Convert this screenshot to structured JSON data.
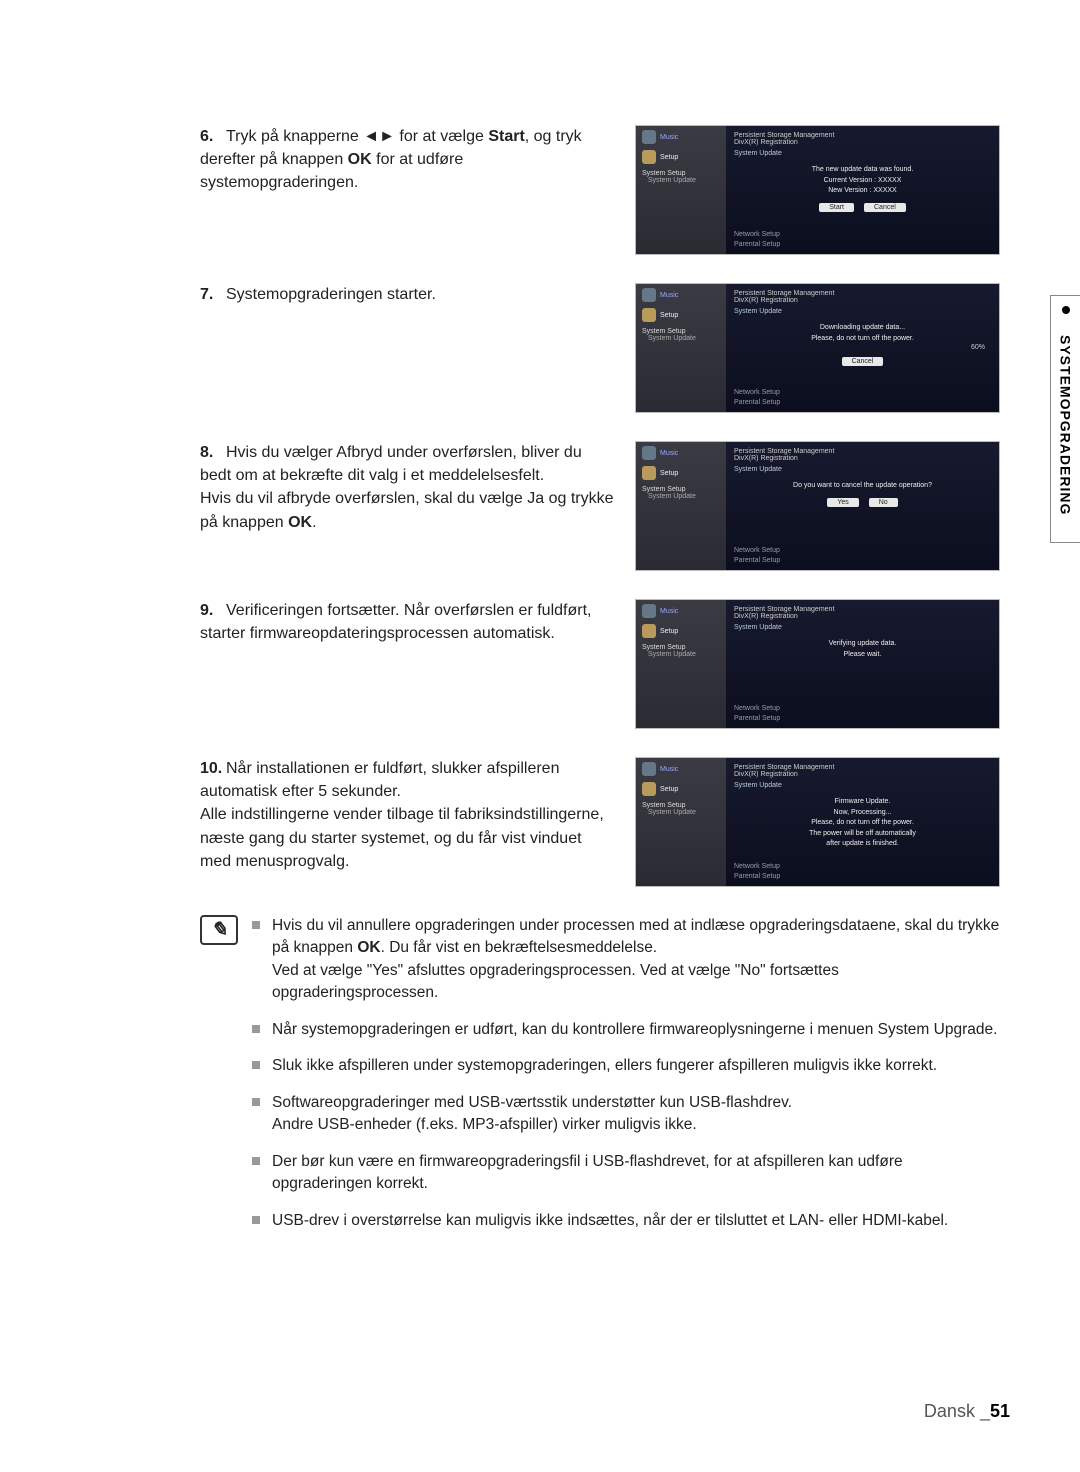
{
  "sideTab": {
    "label": "SYSTEMOPGRADERING"
  },
  "footer": {
    "lang": "Dansk _",
    "page": "51"
  },
  "steps": [
    {
      "num": "6.",
      "html_parts": [
        "Tryk på knapperne ",
        "◄►",
        " for at vælge ",
        "Start",
        ", og tryk derefter på knappen ",
        "OK",
        " for at udføre systemopgraderingen."
      ],
      "fig": {
        "headL": "Persistent Storage Management",
        "headR": "DivX(R) Registration",
        "tag": "System Update",
        "lines": [
          "The new update data was found.",
          "Current Version : XXXXX",
          "New Version : XXXXX"
        ],
        "buttons": [
          "Start",
          "Cancel"
        ],
        "progress": "",
        "bottom": [
          "Network Setup",
          "Parental Setup"
        ]
      }
    },
    {
      "num": "7.",
      "html_parts": [
        "Systemopgraderingen starter."
      ],
      "fig": {
        "headL": "Persistent Storage Management",
        "headR": "DivX(R) Registration",
        "tag": "System Update",
        "lines": [
          "Downloading update data...",
          "Please, do not turn off the power."
        ],
        "buttons": [
          "Cancel"
        ],
        "progress": "60%",
        "bottom": [
          "Network Setup",
          "Parental Setup"
        ]
      }
    },
    {
      "num": "8.",
      "html_parts": [
        "Hvis du vælger Afbryd under overførslen, bliver du bedt om at bekræfte dit valg i et meddelelsesfelt.",
        "\nHvis du vil afbryde overførslen, skal du vælge Ja og trykke på knappen ",
        "OK",
        "."
      ],
      "fig": {
        "headL": "Persistent Storage Management",
        "headR": "DivX(R) Registration",
        "tag": "System Update",
        "lines": [
          "Do you want to cancel the update operation?"
        ],
        "buttons": [
          "Yes",
          "No"
        ],
        "progress": "",
        "bottom": [
          "Network Setup",
          "Parental Setup"
        ]
      }
    },
    {
      "num": "9.",
      "html_parts": [
        "Verificeringen fortsætter. Når overførslen er fuldført, starter firmwareopdateringsprocessen automatisk."
      ],
      "fig": {
        "headL": "Persistent Storage Management",
        "headR": "DivX(R) Registration",
        "tag": "System Update",
        "lines": [
          "Verifying update data.",
          "Please wait."
        ],
        "buttons": [],
        "progress": "",
        "bottom": [
          "Network Setup",
          "Parental Setup"
        ]
      }
    },
    {
      "num": "10.",
      "html_parts": [
        "Når installationen er fuldført, slukker afspilleren automatisk efter 5 sekunder.",
        "\nAlle indstillingerne vender tilbage til fabriksindstillingerne, næste gang du starter systemet, og du får vist vinduet med menusprogvalg."
      ],
      "fig": {
        "headL": "Persistent Storage Management",
        "headR": "DivX(R) Registration",
        "tag": "System Update",
        "lines": [
          "Firmware Update.",
          "Now, Processing...",
          "Please, do not turn off the power.",
          "The power will be off automatically",
          "after update is finished."
        ],
        "buttons": [],
        "progress": "",
        "bottom": [
          "Network Setup",
          "Parental Setup"
        ]
      }
    }
  ],
  "figCommon": {
    "music": "Music",
    "setup": "Setup",
    "systemSetup": "System Setup",
    "systemUpdate": "System Update"
  },
  "notes": [
    "Hvis du vil annullere opgraderingen under processen med at indlæse opgraderingsdataene, skal du trykke på knappen OK. Du får vist en bekræftelsesmeddelelse.\nVed at vælge \"Yes\" afsluttes opgraderingsprocessen. Ved at vælge \"No\" fortsættes opgraderingsprocessen.",
    "Når systemopgraderingen er udført, kan du kontrollere firmwareoplysningerne i menuen System Upgrade.",
    "Sluk ikke afspilleren under systemopgraderingen, ellers fungerer afspilleren muligvis ikke korrekt.",
    "Softwareopgraderinger med USB-værtsstik understøtter kun USB-flashdrev.\nAndre USB-enheder (f.eks. MP3-afspiller) virker muligvis ikke.",
    "Der bør kun være en firmwareopgraderingsfil i USB-flashdrevet, for at afspilleren kan udføre opgraderingen korrekt.",
    "USB-drev i overstørrelse kan muligvis ikke indsættes, når der er tilsluttet et LAN- eller HDMI-kabel."
  ],
  "noteBoldKeys": [
    "OK"
  ]
}
